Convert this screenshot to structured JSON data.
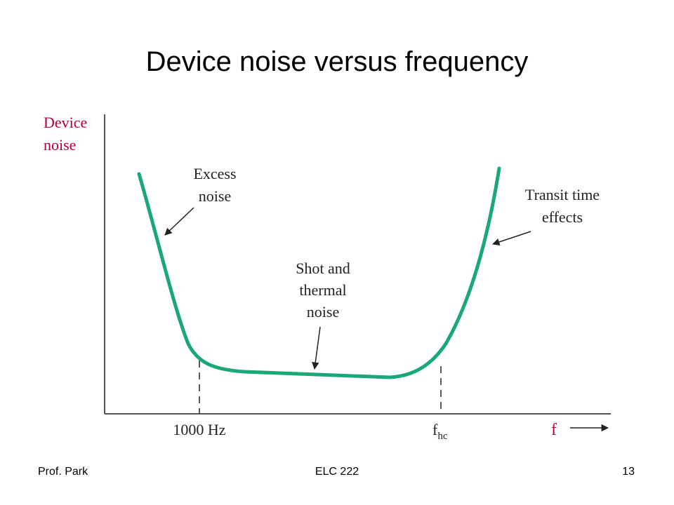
{
  "slide": {
    "title": "Device noise versus frequency"
  },
  "diagram": {
    "y_axis_label_line1": "Device",
    "y_axis_label_line2": "noise",
    "x_axis_label": "f",
    "tick_1000hz": "1000 Hz",
    "tick_fhc_main": "f",
    "tick_fhc_sub": "hc",
    "annotations": {
      "excess_line1": "Excess",
      "excess_line2": "noise",
      "shot_line1": "Shot and",
      "shot_line2": "thermal",
      "shot_line3": "noise",
      "transit_line1": "Transit time",
      "transit_line2": "effects"
    },
    "colors": {
      "curve": "#1aa874",
      "axis_label": "#b0003a",
      "axis": "#555555",
      "text": "#222222"
    }
  },
  "footer": {
    "left": "Prof. Park",
    "center": "ELC 222",
    "right": "13"
  }
}
